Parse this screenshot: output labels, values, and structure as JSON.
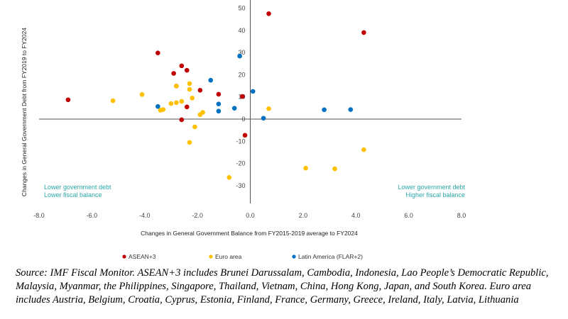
{
  "chart_data": {
    "type": "scatter",
    "xlabel": "Changes in General Government Balance from FY2015-2019 average to FY2024",
    "ylabel": "Changes in General Government Debt from FY2019 to FY2024",
    "xlim": [
      -8,
      8
    ],
    "ylim": [
      -38,
      53
    ],
    "xticks": [
      "-8.0",
      "-6.0",
      "-4.0",
      "-2.0",
      "0.0",
      "2.0",
      "4.0",
      "6.0",
      "8.0"
    ],
    "yticks": [
      "50",
      "40",
      "30",
      "20",
      "10",
      "0",
      "-10",
      "-20",
      "-30"
    ],
    "grid": false,
    "legend_position": "bottom",
    "quadrant_labels": {
      "bottom_left_line1": "Lower government debt",
      "bottom_left_line2": "Lower fiscal balance",
      "bottom_right_line1": "Lower government debt",
      "bottom_right_line2": "Higher fiscal balance"
    },
    "series": [
      {
        "name": "ASEAN+3",
        "color": "#c00000",
        "points": [
          [
            -6.9,
            8.7
          ],
          [
            -3.5,
            29.8
          ],
          [
            -2.9,
            20.6
          ],
          [
            -2.6,
            24.0
          ],
          [
            -2.4,
            22.0
          ],
          [
            -2.8,
            14.9
          ],
          [
            -1.9,
            13.0
          ],
          [
            -1.2,
            11.2
          ],
          [
            -0.3,
            10.2
          ],
          [
            -2.4,
            5.5
          ],
          [
            -2.6,
            -0.3
          ],
          [
            -0.2,
            -7.3
          ],
          [
            0.7,
            47.5
          ],
          [
            4.3,
            39.0
          ]
        ]
      },
      {
        "name": "Euro area",
        "color": "#ffc000",
        "points": [
          [
            -5.2,
            8.3
          ],
          [
            -4.1,
            11.1
          ],
          [
            -3.4,
            4.0
          ],
          [
            -3.3,
            4.3
          ],
          [
            -3.0,
            7.0
          ],
          [
            -2.8,
            7.4
          ],
          [
            -2.6,
            8.0
          ],
          [
            -2.8,
            14.9
          ],
          [
            -2.3,
            16.0
          ],
          [
            -2.3,
            13.4
          ],
          [
            -2.2,
            9.5
          ],
          [
            -1.9,
            2.0
          ],
          [
            -1.8,
            3.0
          ],
          [
            -2.1,
            -3.5
          ],
          [
            -2.3,
            -10.5
          ],
          [
            -0.8,
            -26.3
          ],
          [
            0.7,
            4.7
          ],
          [
            2.1,
            -22.1
          ],
          [
            3.2,
            -22.4
          ],
          [
            4.3,
            -13.8
          ]
        ]
      },
      {
        "name": "Latin America (FLAR+2)",
        "color": "#0070c0",
        "points": [
          [
            -3.5,
            5.7
          ],
          [
            -1.5,
            17.5
          ],
          [
            -1.2,
            6.8
          ],
          [
            -1.2,
            3.6
          ],
          [
            -0.6,
            4.9
          ],
          [
            -0.4,
            28.4
          ],
          [
            0.1,
            12.5
          ],
          [
            0.5,
            0.4
          ],
          [
            2.8,
            4.2
          ],
          [
            3.8,
            4.3
          ]
        ]
      }
    ]
  },
  "source_note": "Source: IMF Fiscal Monitor. ASEAN+3 includes Brunei Darussalam, Cambodia, Indonesia, Lao People’s Democratic Republic, Malaysia, Myanmar, the Philippines, Singapore, Thailand, Vietnam, China, Hong Kong, Japan, and South Korea. Euro area includes Austria, Belgium, Croatia, Cyprus, Estonia, Finland, France, Germany, Greece, Ireland, Italy, Latvia, Lithuania"
}
